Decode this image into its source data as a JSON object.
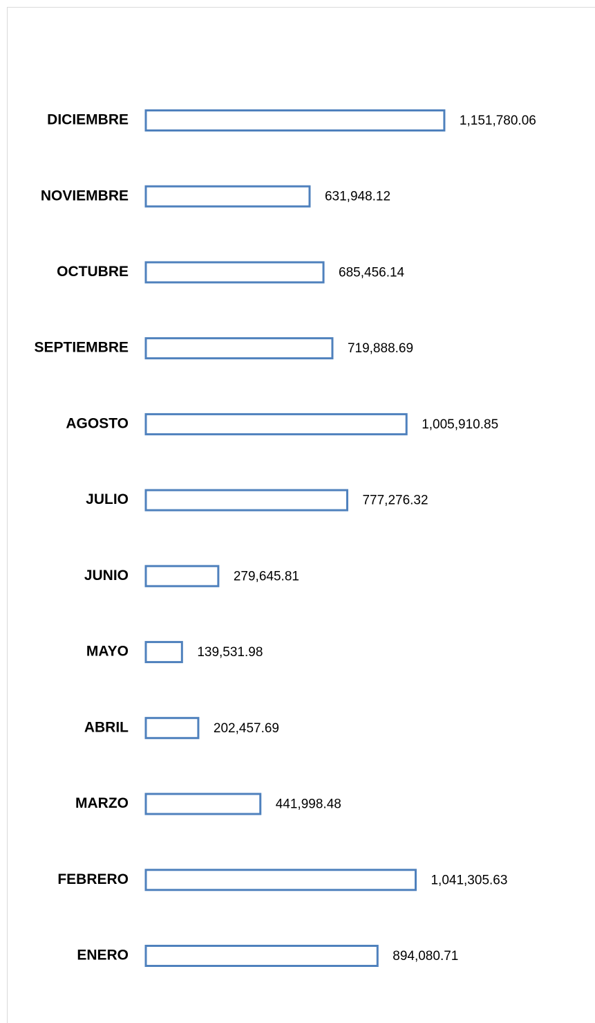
{
  "chart_data": {
    "type": "bar",
    "orientation": "horizontal",
    "categories": [
      "ENERO",
      "FEBRERO",
      "MARZO",
      "ABRIL",
      "MAYO",
      "JUNIO",
      "JULIO",
      "AGOSTO",
      "SEPTIEMBRE",
      "OCTUBRE",
      "NOVIEMBRE",
      "DICIEMBRE"
    ],
    "values": [
      894080.71,
      1041305.63,
      441998.48,
      202457.69,
      139531.98,
      279645.81,
      777276.32,
      1005910.85,
      719888.69,
      685456.14,
      631948.12,
      1151780.06
    ],
    "value_labels": [
      "894,080.71",
      "1,041,305.63",
      "441,998.48",
      "202,457.69",
      "139,531.98",
      "279,645.81",
      "777,276.32",
      "1,005,910.85",
      "719,888.69",
      "685,456.14",
      "631,948.12",
      "1,151,780.06"
    ],
    "color": "#4f81bd",
    "xlim": [
      0,
      1400000
    ]
  }
}
